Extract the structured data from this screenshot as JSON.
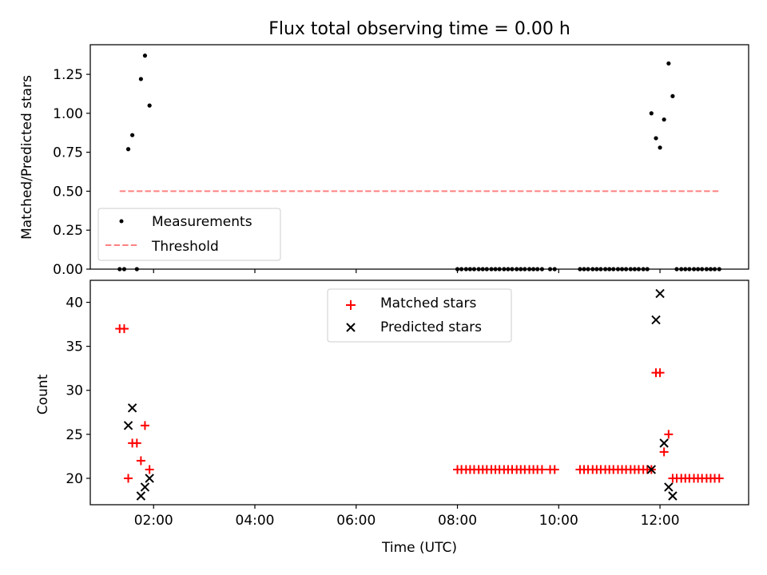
{
  "chart_data": [
    {
      "type": "scatter",
      "title": "Flux total observing time = 0.00 h",
      "xlabel": "",
      "ylabel": "Matched/Predicted stars",
      "xlim": [
        0.75,
        13.75
      ],
      "ylim": [
        0.0,
        1.44
      ],
      "yticks": [
        0.0,
        0.25,
        0.5,
        0.75,
        1.0,
        1.25
      ],
      "ytick_labels": [
        "0.00",
        "0.25",
        "0.50",
        "0.75",
        "1.00",
        "1.25"
      ],
      "xticks": [
        2,
        4,
        6,
        8,
        10,
        12
      ],
      "grid": false,
      "legend": {
        "location": "lower left",
        "entries": [
          "Measurements",
          "Threshold"
        ]
      },
      "threshold": {
        "name": "Threshold",
        "value": 0.5,
        "x_range": [
          1.33,
          13.17
        ],
        "color": "#ff8080"
      },
      "series": [
        {
          "name": "Measurements",
          "marker": "dot",
          "color": "#000000",
          "x": [
            1.33,
            1.42,
            1.5,
            1.58,
            1.67,
            1.75,
            1.83,
            1.92,
            8.0,
            8.08,
            8.17,
            8.25,
            8.33,
            8.42,
            8.5,
            8.58,
            8.67,
            8.75,
            8.83,
            8.92,
            9.0,
            9.08,
            9.17,
            9.25,
            9.33,
            9.42,
            9.5,
            9.58,
            9.67,
            9.83,
            9.92,
            10.42,
            10.5,
            10.58,
            10.67,
            10.75,
            10.83,
            10.92,
            11.0,
            11.08,
            11.17,
            11.25,
            11.33,
            11.42,
            11.5,
            11.58,
            11.67,
            11.75,
            11.83,
            11.92,
            12.0,
            12.08,
            12.17,
            12.25,
            12.33,
            12.42,
            12.5,
            12.58,
            12.67,
            12.75,
            12.83,
            12.92,
            13.0,
            13.08,
            13.17
          ],
          "y": [
            0.0,
            0.0,
            0.77,
            0.86,
            0.0,
            1.22,
            1.37,
            1.05,
            0,
            0,
            0,
            0,
            0,
            0,
            0,
            0,
            0,
            0,
            0,
            0,
            0,
            0,
            0,
            0,
            0,
            0,
            0,
            0,
            0,
            0,
            0,
            0,
            0,
            0,
            0,
            0,
            0,
            0,
            0,
            0,
            0,
            0,
            0,
            0,
            0,
            0,
            0,
            0,
            1.0,
            0.84,
            0.78,
            0.96,
            1.32,
            1.11,
            0,
            0,
            0,
            0,
            0,
            0,
            0,
            0,
            0,
            0,
            0
          ]
        }
      ]
    },
    {
      "type": "scatter",
      "title": "",
      "xlabel": "Time (UTC)",
      "ylabel": "Count",
      "xlim": [
        0.75,
        13.75
      ],
      "ylim": [
        17,
        42.5
      ],
      "yticks": [
        20,
        25,
        30,
        35,
        40
      ],
      "ytick_labels": [
        "20",
        "25",
        "30",
        "35",
        "40"
      ],
      "xticks": [
        2,
        4,
        6,
        8,
        10,
        12
      ],
      "xtick_labels": [
        "02:00",
        "04:00",
        "06:00",
        "08:00",
        "10:00",
        "12:00"
      ],
      "grid": false,
      "legend": {
        "location": "upper center",
        "entries": [
          "Matched stars",
          "Predicted stars"
        ]
      },
      "series": [
        {
          "name": "Matched stars",
          "marker": "plus",
          "color": "#ff0000",
          "x": [
            1.33,
            1.42,
            1.5,
            1.58,
            1.67,
            1.75,
            1.83,
            1.92,
            8.0,
            8.08,
            8.17,
            8.25,
            8.33,
            8.42,
            8.5,
            8.58,
            8.67,
            8.75,
            8.83,
            8.92,
            9.0,
            9.08,
            9.17,
            9.25,
            9.33,
            9.42,
            9.5,
            9.58,
            9.67,
            9.83,
            9.92,
            10.42,
            10.5,
            10.58,
            10.67,
            10.75,
            10.83,
            10.92,
            11.0,
            11.08,
            11.17,
            11.25,
            11.33,
            11.42,
            11.5,
            11.58,
            11.67,
            11.75,
            11.83,
            11.92,
            12.0,
            12.08,
            12.17,
            12.25,
            12.33,
            12.42,
            12.5,
            12.58,
            12.67,
            12.75,
            12.83,
            12.92,
            13.0,
            13.08,
            13.17
          ],
          "y": [
            37,
            37,
            20,
            24,
            24,
            22,
            26,
            21,
            21,
            21,
            21,
            21,
            21,
            21,
            21,
            21,
            21,
            21,
            21,
            21,
            21,
            21,
            21,
            21,
            21,
            21,
            21,
            21,
            21,
            21,
            21,
            21,
            21,
            21,
            21,
            21,
            21,
            21,
            21,
            21,
            21,
            21,
            21,
            21,
            21,
            21,
            21,
            21,
            21,
            32,
            32,
            23,
            25,
            20,
            20,
            20,
            20,
            20,
            20,
            20,
            20,
            20,
            20,
            20,
            20
          ]
        },
        {
          "name": "Predicted stars",
          "marker": "x",
          "color": "#000000",
          "x": [
            1.5,
            1.58,
            1.75,
            1.83,
            1.92,
            11.83,
            11.92,
            12.0,
            12.08,
            12.17,
            12.25
          ],
          "y": [
            26,
            28,
            18,
            19,
            20,
            21,
            38,
            41,
            24,
            19,
            18
          ]
        }
      ]
    }
  ]
}
